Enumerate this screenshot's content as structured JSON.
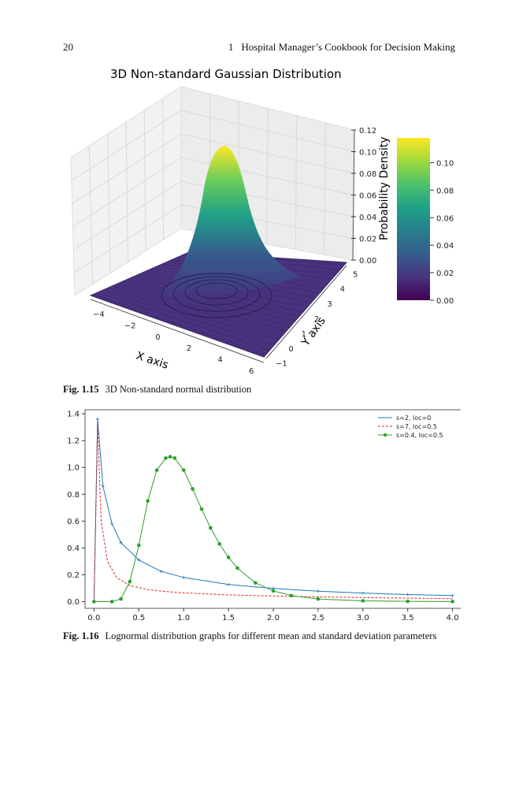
{
  "header": {
    "page_number": "20",
    "chapter_number": "1",
    "running_title": "Hospital Manager’s Cookbook for Decision Making"
  },
  "figure_3d": {
    "caption_label": "Fig. 1.15",
    "caption_text": "3D Non-standard normal distribution",
    "chart_data": {
      "type": "surface",
      "title": "3D Non-standard Gaussian Distribution",
      "xlabel": "X axis",
      "ylabel": "Y axis",
      "zlabel": "Probability Density",
      "x_ticks": [
        "−4",
        "−2",
        "0",
        "2",
        "4",
        "6"
      ],
      "y_ticks": [
        "−1",
        "0",
        "1",
        "2",
        "3",
        "4",
        "5"
      ],
      "z_ticks": [
        "0.00",
        "0.02",
        "0.04",
        "0.06",
        "0.08",
        "0.10",
        "0.12"
      ],
      "colorbar_ticks": [
        "0.00",
        "0.02",
        "0.04",
        "0.06",
        "0.08",
        "0.10"
      ],
      "colormap": "viridis",
      "peak_density": 0.118,
      "xlim": [
        -5,
        7
      ],
      "ylim": [
        -1,
        5
      ],
      "zlim": [
        0,
        0.12
      ],
      "colors": [
        "#440154",
        "#46327e",
        "#365c8d",
        "#277f8e",
        "#1fa187",
        "#4ac16d",
        "#a0da39",
        "#fde725"
      ]
    }
  },
  "figure_2d": {
    "caption_label": "Fig. 1.16",
    "caption_text": "Lognormal distribution graphs for different mean and standard deviation parameters",
    "chart_data": {
      "type": "line",
      "title": "",
      "xlabel": "",
      "ylabel": "",
      "xlim": [
        -0.1,
        4.1
      ],
      "ylim": [
        -0.05,
        1.43
      ],
      "x_ticks": [
        "0.0",
        "0.5",
        "1.0",
        "1.5",
        "2.0",
        "2.5",
        "3.0",
        "3.5",
        "4.0"
      ],
      "y_ticks": [
        "0.0",
        "0.2",
        "0.4",
        "0.6",
        "0.8",
        "1.0",
        "1.2",
        "1.4"
      ],
      "legend_position": "top-right",
      "series": [
        {
          "name": "s=2, loc=0",
          "color": "#1f77b4",
          "style": "solid",
          "marker": "plus",
          "x": [
            0.0,
            0.04,
            0.1,
            0.2,
            0.3,
            0.5,
            0.75,
            1.0,
            1.5,
            2.0,
            2.5,
            3.0,
            3.5,
            4.0
          ],
          "y": [
            0.0,
            1.36,
            0.86,
            0.58,
            0.44,
            0.31,
            0.225,
            0.18,
            0.128,
            0.098,
            0.078,
            0.064,
            0.053,
            0.045
          ]
        },
        {
          "name": "s=7, loc=0.5",
          "color": "#d62728",
          "style": "dashed",
          "marker": "none",
          "x": [
            0.0,
            0.04,
            0.08,
            0.15,
            0.25,
            0.4,
            0.6,
            0.8,
            1.0,
            1.5,
            2.0,
            2.5,
            3.0,
            3.5,
            4.0
          ],
          "y": [
            0.0,
            1.32,
            0.6,
            0.3,
            0.18,
            0.12,
            0.09,
            0.075,
            0.065,
            0.05,
            0.042,
            0.036,
            0.03,
            0.026,
            0.022
          ]
        },
        {
          "name": "s=0.4, loc=0.5",
          "color": "#2ca02c",
          "style": "solid",
          "marker": "circle",
          "x": [
            0.0,
            0.2,
            0.3,
            0.4,
            0.5,
            0.6,
            0.7,
            0.8,
            0.85,
            0.9,
            1.0,
            1.1,
            1.2,
            1.3,
            1.4,
            1.5,
            1.6,
            1.8,
            2.0,
            2.2,
            2.5,
            3.0,
            3.5,
            4.0
          ],
          "y": [
            0.0,
            0.0,
            0.02,
            0.15,
            0.42,
            0.75,
            0.98,
            1.07,
            1.08,
            1.07,
            0.98,
            0.84,
            0.69,
            0.55,
            0.43,
            0.33,
            0.25,
            0.14,
            0.08,
            0.045,
            0.02,
            0.006,
            0.002,
            0.0
          ]
        }
      ]
    }
  }
}
